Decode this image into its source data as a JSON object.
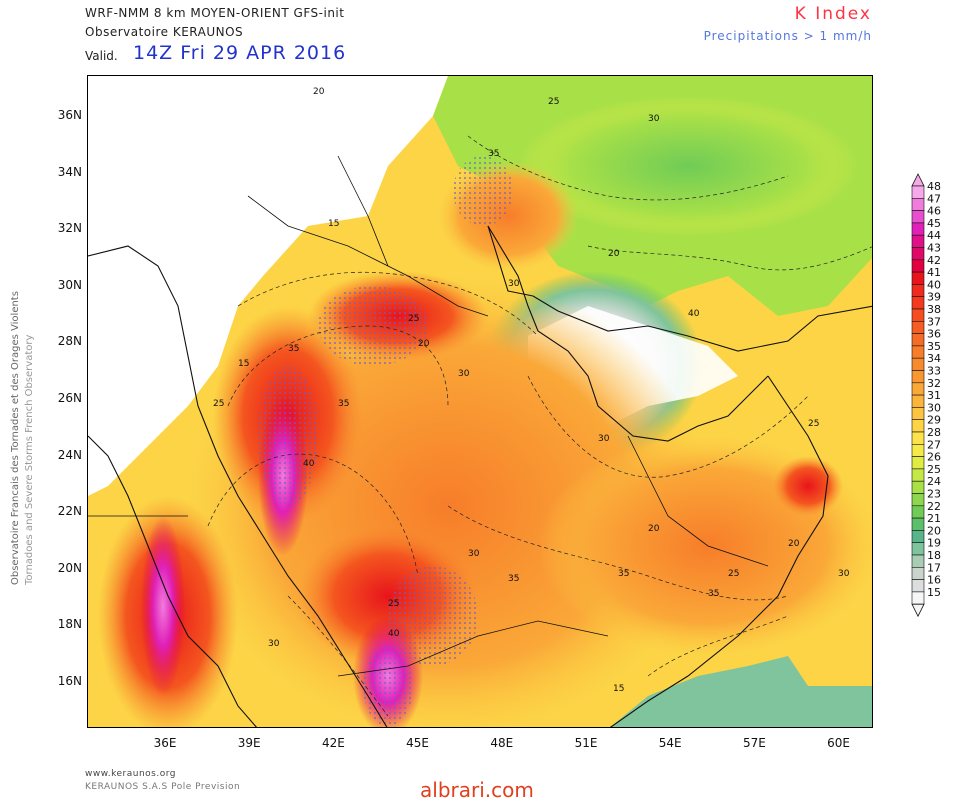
{
  "header": {
    "model_line": "WRF-NMM 8 km MOYEN-ORIENT  GFS-init",
    "observatory": "Observatoire KERAUNOS",
    "valid_label": "Valid.",
    "valid_time": "14Z Fri 29 APR 2016",
    "index_title": "K Index",
    "precip_note": "Precipitations > 1 mm/h"
  },
  "side_credit": {
    "line1": "Observatoire Francais des Tornades et des Orages Violents",
    "line2": "Tornadoes and Severe Storms French Observatory"
  },
  "map": {
    "lat_ticks": [
      "36N",
      "34N",
      "32N",
      "30N",
      "28N",
      "26N",
      "24N",
      "22N",
      "20N",
      "18N",
      "16N"
    ],
    "lon_ticks": [
      "36E",
      "39E",
      "42E",
      "45E",
      "48E",
      "51E",
      "54E",
      "57E",
      "60E"
    ],
    "contour_labels": [
      {
        "text": "20"
      },
      {
        "text": "25"
      },
      {
        "text": "30"
      },
      {
        "text": "15"
      },
      {
        "text": "35"
      },
      {
        "text": "25"
      },
      {
        "text": "30"
      },
      {
        "text": "15"
      },
      {
        "text": "20"
      },
      {
        "text": "35"
      },
      {
        "text": "40"
      },
      {
        "text": "35"
      },
      {
        "text": "30"
      },
      {
        "text": "25"
      },
      {
        "text": "20"
      },
      {
        "text": "40"
      },
      {
        "text": "30"
      },
      {
        "text": "35"
      },
      {
        "text": "25"
      },
      {
        "text": "30"
      },
      {
        "text": "20"
      },
      {
        "text": "15"
      },
      {
        "text": "25"
      },
      {
        "text": "35"
      },
      {
        "text": "30"
      },
      {
        "text": "20"
      },
      {
        "text": "25"
      },
      {
        "text": "30"
      },
      {
        "text": "40"
      },
      {
        "text": "35"
      }
    ]
  },
  "colorbar": {
    "levels": [
      "48",
      "47",
      "46",
      "45",
      "44",
      "43",
      "42",
      "41",
      "40",
      "39",
      "38",
      "37",
      "36",
      "35",
      "34",
      "33",
      "32",
      "31",
      "30",
      "29",
      "28",
      "27",
      "26",
      "25",
      "24",
      "23",
      "22",
      "21",
      "20",
      "19",
      "18",
      "17",
      "16",
      "15"
    ],
    "colors": [
      "#f5a9e8",
      "#f07cdc",
      "#e84fd0",
      "#e020b8",
      "#e0108a",
      "#e00868",
      "#e30040",
      "#e8141c",
      "#f02a1c",
      "#f43a1e",
      "#f54c20",
      "#f65d22",
      "#f66c26",
      "#f77d2a",
      "#f88a2e",
      "#f99832",
      "#faa838",
      "#fbb53c",
      "#fcc441",
      "#fcd446",
      "#fde24c",
      "#f6ea48",
      "#e0ec44",
      "#c5e846",
      "#a8e048",
      "#8dd64e",
      "#70cc56",
      "#5cbf6a",
      "#58b58a",
      "#7fc49c",
      "#a8cdb4",
      "#c8d4cc",
      "#dcdedd",
      "#f6f6f6"
    ]
  },
  "footer": {
    "site": "www.keraunos.org",
    "company": "KERAUNOS S.A.S Pole Prevision"
  },
  "watermark": "albrari.com"
}
